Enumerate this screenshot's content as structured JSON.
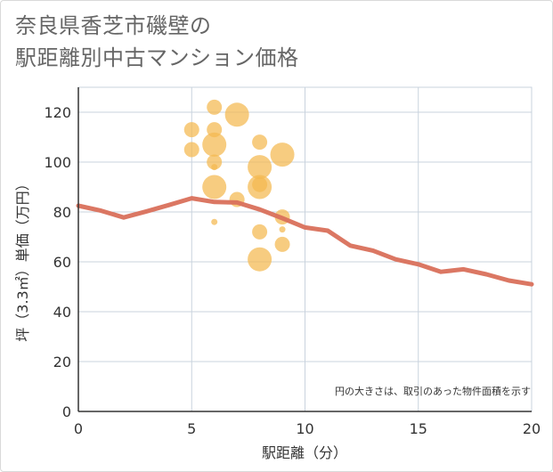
{
  "title": {
    "line1": "奈良県香芝市磯壁の",
    "line2": "駅距離別中古マンション価格"
  },
  "chart_data": {
    "type": "scatter",
    "title": "奈良県香芝市磯壁の駅距離別中古マンション価格",
    "xlabel": "駅距離（分）",
    "ylabel": "坪（3.3㎡）単価（万円）",
    "xlim": [
      0,
      20
    ],
    "ylim": [
      0,
      130
    ],
    "xticks": [
      0,
      5,
      10,
      15,
      20
    ],
    "yticks": [
      0,
      20,
      40,
      60,
      80,
      100,
      120
    ],
    "grid": true,
    "note": "円の大きさは、取引のあった物件面積を示す",
    "colors": {
      "bubble": "#F4B94F",
      "line": "#D9705B",
      "grid": "#C9D3DE",
      "axis": "#333333"
    },
    "bubbles": [
      {
        "x": 6,
        "y": 122,
        "size": 2
      },
      {
        "x": 7,
        "y": 119,
        "size": 4
      },
      {
        "x": 5,
        "y": 113,
        "size": 2
      },
      {
        "x": 6,
        "y": 113,
        "size": 2
      },
      {
        "x": 6,
        "y": 107,
        "size": 4
      },
      {
        "x": 5,
        "y": 105,
        "size": 2
      },
      {
        "x": 8,
        "y": 108,
        "size": 2
      },
      {
        "x": 9,
        "y": 103,
        "size": 4
      },
      {
        "x": 6,
        "y": 100,
        "size": 2
      },
      {
        "x": 6,
        "y": 98,
        "size": 1
      },
      {
        "x": 8,
        "y": 98,
        "size": 4
      },
      {
        "x": 8,
        "y": 91,
        "size": 2
      },
      {
        "x": 6,
        "y": 90,
        "size": 4
      },
      {
        "x": 8,
        "y": 90,
        "size": 4
      },
      {
        "x": 7,
        "y": 85,
        "size": 2
      },
      {
        "x": 9,
        "y": 78,
        "size": 2
      },
      {
        "x": 6,
        "y": 76,
        "size": 1
      },
      {
        "x": 9,
        "y": 73,
        "size": 1
      },
      {
        "x": 8,
        "y": 72,
        "size": 2
      },
      {
        "x": 9,
        "y": 67,
        "size": 2
      },
      {
        "x": 8,
        "y": 61,
        "size": 4
      }
    ],
    "trend": {
      "x": [
        0,
        1,
        2,
        3,
        4,
        5,
        6,
        7,
        8,
        9,
        10,
        11,
        12,
        13,
        14,
        15,
        16,
        17,
        18,
        19,
        20
      ],
      "y": [
        82.5,
        80.5,
        77.8,
        80.2,
        82.8,
        85.5,
        84.0,
        83.8,
        81.0,
        77.5,
        73.8,
        72.5,
        66.5,
        64.5,
        61.0,
        59.0,
        56.0,
        57.0,
        55.0,
        52.5,
        51.0
      ]
    }
  }
}
